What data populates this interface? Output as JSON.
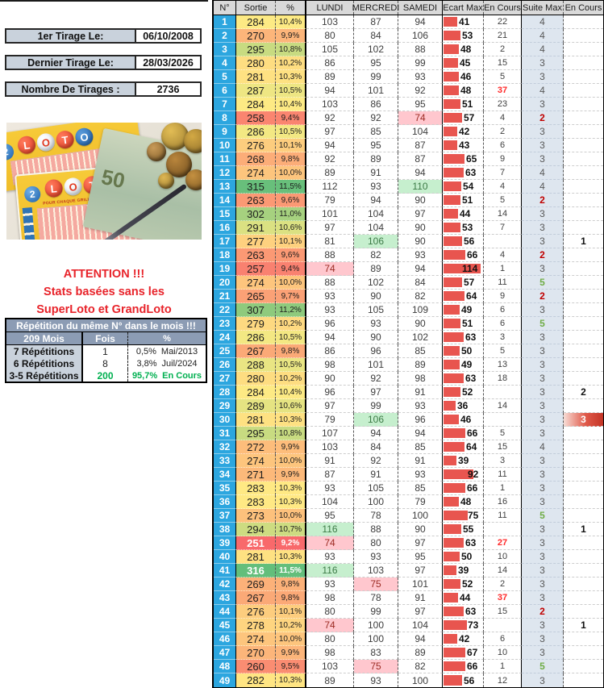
{
  "info_boxes": [
    {
      "label": "1er Tirage Le:",
      "value": "06/10/2008"
    },
    {
      "label": "Dernier Tirage Le:",
      "value": "28/03/2026"
    },
    {
      "label": "Nombre De Tirages :",
      "value": "2736"
    }
  ],
  "attention": {
    "lines": [
      "ATTENTION !!!",
      "Stats basées sans les",
      "SuperLoto et GrandLoto"
    ]
  },
  "photo": {
    "loto_letters": [
      "L",
      "O",
      "T",
      "O"
    ],
    "ticket_badge": "2",
    "ticket_subtitle": "POUR CHAQUE GRILLE COCHEZ 5 NUMÉROS",
    "bill_value": "50"
  },
  "repetition": {
    "title": "Répétition du même N° dans le mois !!!",
    "columns": [
      "209 Mois",
      "Fois",
      "%"
    ],
    "rows": [
      {
        "label": "7 Répétitions",
        "fois": "1",
        "pct": "0,5%",
        "note": "Mai/2013",
        "highlight": false
      },
      {
        "label": "6 Répétitions",
        "fois": "8",
        "pct": "3,8%",
        "note": "Juil/2024",
        "highlight": false
      },
      {
        "label": "3-5 Répétitions",
        "fois": "200",
        "pct": "95,7%",
        "note": "En Cours",
        "highlight": true
      }
    ]
  },
  "table": {
    "headers": [
      "N°",
      "Sortie",
      "%",
      "LUNDI",
      "MERCREDI",
      "SAMEDI",
      "Ecart Max",
      "En Cours",
      "Suite Max",
      "En Cours"
    ],
    "rows": [
      {
        "n": 1,
        "sortie": 284,
        "pct": "10,4%",
        "lundi": 103,
        "mercredi": 87,
        "samedi": 94,
        "ecart": 41,
        "encours": "22",
        "encours_red": false,
        "suite": 4,
        "encours2": "",
        "encours2_hot": false
      },
      {
        "n": 2,
        "sortie": 270,
        "pct": "9,9%",
        "lundi": 80,
        "mercredi": 84,
        "samedi": 106,
        "ecart": 53,
        "encours": "21",
        "encours_red": false,
        "suite": 4,
        "encours2": "",
        "encours2_hot": false
      },
      {
        "n": 3,
        "sortie": 295,
        "pct": "10,8%",
        "lundi": 105,
        "mercredi": 102,
        "samedi": 88,
        "ecart": 48,
        "encours": "2",
        "encours_red": false,
        "suite": 4,
        "encours2": "",
        "encours2_hot": false
      },
      {
        "n": 4,
        "sortie": 280,
        "pct": "10,2%",
        "lundi": 86,
        "mercredi": 95,
        "samedi": 99,
        "ecart": 45,
        "encours": "15",
        "encours_red": false,
        "suite": 3,
        "encours2": "",
        "encours2_hot": false
      },
      {
        "n": 5,
        "sortie": 281,
        "pct": "10,3%",
        "lundi": 89,
        "mercredi": 99,
        "samedi": 93,
        "ecart": 46,
        "encours": "5",
        "encours_red": false,
        "suite": 3,
        "encours2": "",
        "encours2_hot": false
      },
      {
        "n": 6,
        "sortie": 287,
        "pct": "10,5%",
        "lundi": 94,
        "mercredi": 101,
        "samedi": 92,
        "ecart": 48,
        "encours": "37",
        "encours_red": true,
        "suite": 4,
        "encours2": "",
        "encours2_hot": false
      },
      {
        "n": 7,
        "sortie": 284,
        "pct": "10,4%",
        "lundi": 103,
        "mercredi": 86,
        "samedi": 95,
        "ecart": 51,
        "encours": "23",
        "encours_red": false,
        "suite": 3,
        "encours2": "",
        "encours2_hot": false
      },
      {
        "n": 8,
        "sortie": 258,
        "pct": "9,4%",
        "lundi": 92,
        "mercredi": 92,
        "samedi": 74,
        "ecart": 57,
        "encours": "4",
        "encours_red": false,
        "suite": 2,
        "encours2": "",
        "encours2_hot": false
      },
      {
        "n": 9,
        "sortie": 286,
        "pct": "10,5%",
        "lundi": 97,
        "mercredi": 85,
        "samedi": 104,
        "ecart": 42,
        "encours": "2",
        "encours_red": false,
        "suite": 3,
        "encours2": "",
        "encours2_hot": false
      },
      {
        "n": 10,
        "sortie": 276,
        "pct": "10,1%",
        "lundi": 94,
        "mercredi": 95,
        "samedi": 87,
        "ecart": 43,
        "encours": "6",
        "encours_red": false,
        "suite": 3,
        "encours2": "",
        "encours2_hot": false
      },
      {
        "n": 11,
        "sortie": 268,
        "pct": "9,8%",
        "lundi": 92,
        "mercredi": 89,
        "samedi": 87,
        "ecart": 65,
        "encours": "9",
        "encours_red": false,
        "suite": 3,
        "encours2": "",
        "encours2_hot": false
      },
      {
        "n": 12,
        "sortie": 274,
        "pct": "10,0%",
        "lundi": 89,
        "mercredi": 91,
        "samedi": 94,
        "ecart": 63,
        "encours": "7",
        "encours_red": false,
        "suite": 4,
        "encours2": "",
        "encours2_hot": false
      },
      {
        "n": 13,
        "sortie": 315,
        "pct": "11,5%",
        "lundi": 112,
        "mercredi": 93,
        "samedi": 110,
        "ecart": 54,
        "encours": "4",
        "encours_red": false,
        "suite": 4,
        "encours2": "",
        "encours2_hot": false
      },
      {
        "n": 14,
        "sortie": 263,
        "pct": "9,6%",
        "lundi": 79,
        "mercredi": 94,
        "samedi": 90,
        "ecart": 51,
        "encours": "5",
        "encours_red": false,
        "suite": 2,
        "encours2": "",
        "encours2_hot": false
      },
      {
        "n": 15,
        "sortie": 302,
        "pct": "11,0%",
        "lundi": 101,
        "mercredi": 104,
        "samedi": 97,
        "ecart": 44,
        "encours": "14",
        "encours_red": false,
        "suite": 3,
        "encours2": "",
        "encours2_hot": false
      },
      {
        "n": 16,
        "sortie": 291,
        "pct": "10,6%",
        "lundi": 97,
        "mercredi": 104,
        "samedi": 90,
        "ecart": 53,
        "encours": "7",
        "encours_red": false,
        "suite": 3,
        "encours2": "",
        "encours2_hot": false
      },
      {
        "n": 17,
        "sortie": 277,
        "pct": "10,1%",
        "lundi": 81,
        "mercredi": 106,
        "samedi": 90,
        "ecart": 56,
        "encours": "",
        "encours_red": false,
        "suite": 3,
        "encours2": "1",
        "encours2_hot": false
      },
      {
        "n": 18,
        "sortie": 263,
        "pct": "9,6%",
        "lundi": 88,
        "mercredi": 82,
        "samedi": 93,
        "ecart": 66,
        "encours": "4",
        "encours_red": false,
        "suite": 2,
        "encours2": "",
        "encours2_hot": false
      },
      {
        "n": 19,
        "sortie": 257,
        "pct": "9,4%",
        "lundi": 74,
        "mercredi": 89,
        "samedi": 94,
        "ecart": 114,
        "encours": "1",
        "encours_red": false,
        "suite": 3,
        "encours2": "",
        "encours2_hot": false
      },
      {
        "n": 20,
        "sortie": 274,
        "pct": "10,0%",
        "lundi": 88,
        "mercredi": 102,
        "samedi": 84,
        "ecart": 57,
        "encours": "11",
        "encours_red": false,
        "suite": 5,
        "encours2": "",
        "encours2_hot": false
      },
      {
        "n": 21,
        "sortie": 265,
        "pct": "9,7%",
        "lundi": 93,
        "mercredi": 90,
        "samedi": 82,
        "ecart": 64,
        "encours": "9",
        "encours_red": false,
        "suite": 2,
        "encours2": "",
        "encours2_hot": false
      },
      {
        "n": 22,
        "sortie": 307,
        "pct": "11,2%",
        "lundi": 93,
        "mercredi": 105,
        "samedi": 109,
        "ecart": 49,
        "encours": "6",
        "encours_red": false,
        "suite": 3,
        "encours2": "",
        "encours2_hot": false
      },
      {
        "n": 23,
        "sortie": 279,
        "pct": "10,2%",
        "lundi": 96,
        "mercredi": 93,
        "samedi": 90,
        "ecart": 51,
        "encours": "6",
        "encours_red": false,
        "suite": 5,
        "encours2": "",
        "encours2_hot": false
      },
      {
        "n": 24,
        "sortie": 286,
        "pct": "10,5%",
        "lundi": 94,
        "mercredi": 90,
        "samedi": 102,
        "ecart": 63,
        "encours": "3",
        "encours_red": false,
        "suite": 3,
        "encours2": "",
        "encours2_hot": false
      },
      {
        "n": 25,
        "sortie": 267,
        "pct": "9,8%",
        "lundi": 86,
        "mercredi": 96,
        "samedi": 85,
        "ecart": 50,
        "encours": "5",
        "encours_red": false,
        "suite": 3,
        "encours2": "",
        "encours2_hot": false
      },
      {
        "n": 26,
        "sortie": 288,
        "pct": "10,5%",
        "lundi": 98,
        "mercredi": 101,
        "samedi": 89,
        "ecart": 49,
        "encours": "13",
        "encours_red": false,
        "suite": 3,
        "encours2": "",
        "encours2_hot": false
      },
      {
        "n": 27,
        "sortie": 280,
        "pct": "10,2%",
        "lundi": 90,
        "mercredi": 92,
        "samedi": 98,
        "ecart": 63,
        "encours": "18",
        "encours_red": false,
        "suite": 3,
        "encours2": "",
        "encours2_hot": false
      },
      {
        "n": 28,
        "sortie": 284,
        "pct": "10,4%",
        "lundi": 96,
        "mercredi": 97,
        "samedi": 91,
        "ecart": 52,
        "encours": "",
        "encours_red": false,
        "suite": 3,
        "encours2": "2",
        "encours2_hot": false
      },
      {
        "n": 29,
        "sortie": 289,
        "pct": "10,6%",
        "lundi": 97,
        "mercredi": 99,
        "samedi": 93,
        "ecart": 36,
        "encours": "14",
        "encours_red": false,
        "suite": 3,
        "encours2": "",
        "encours2_hot": false
      },
      {
        "n": 30,
        "sortie": 281,
        "pct": "10,3%",
        "lundi": 79,
        "mercredi": 106,
        "samedi": 96,
        "ecart": 46,
        "encours": "",
        "encours_red": false,
        "suite": 3,
        "encours2": "3",
        "encours2_hot": true
      },
      {
        "n": 31,
        "sortie": 295,
        "pct": "10,8%",
        "lundi": 107,
        "mercredi": 94,
        "samedi": 94,
        "ecart": 66,
        "encours": "5",
        "encours_red": false,
        "suite": 3,
        "encours2": "",
        "encours2_hot": false
      },
      {
        "n": 32,
        "sortie": 272,
        "pct": "9,9%",
        "lundi": 103,
        "mercredi": 84,
        "samedi": 85,
        "ecart": 64,
        "encours": "15",
        "encours_red": false,
        "suite": 4,
        "encours2": "",
        "encours2_hot": false
      },
      {
        "n": 33,
        "sortie": 274,
        "pct": "10,0%",
        "lundi": 91,
        "mercredi": 92,
        "samedi": 91,
        "ecart": 39,
        "encours": "3",
        "encours_red": false,
        "suite": 3,
        "encours2": "",
        "encours2_hot": false
      },
      {
        "n": 34,
        "sortie": 271,
        "pct": "9,9%",
        "lundi": 87,
        "mercredi": 91,
        "samedi": 93,
        "ecart": 92,
        "encours": "11",
        "encours_red": false,
        "suite": 3,
        "encours2": "",
        "encours2_hot": false
      },
      {
        "n": 35,
        "sortie": 283,
        "pct": "10,3%",
        "lundi": 93,
        "mercredi": 105,
        "samedi": 85,
        "ecart": 66,
        "encours": "1",
        "encours_red": false,
        "suite": 3,
        "encours2": "",
        "encours2_hot": false
      },
      {
        "n": 36,
        "sortie": 283,
        "pct": "10,3%",
        "lundi": 104,
        "mercredi": 100,
        "samedi": 79,
        "ecart": 48,
        "encours": "16",
        "encours_red": false,
        "suite": 3,
        "encours2": "",
        "encours2_hot": false
      },
      {
        "n": 37,
        "sortie": 273,
        "pct": "10,0%",
        "lundi": 95,
        "mercredi": 78,
        "samedi": 100,
        "ecart": 75,
        "encours": "11",
        "encours_red": false,
        "suite": 5,
        "encours2": "",
        "encours2_hot": false
      },
      {
        "n": 38,
        "sortie": 294,
        "pct": "10,7%",
        "lundi": 116,
        "mercredi": 88,
        "samedi": 90,
        "ecart": 55,
        "encours": "",
        "encours_red": false,
        "suite": 3,
        "encours2": "1",
        "encours2_hot": false
      },
      {
        "n": 39,
        "sortie": 251,
        "pct": "9,2%",
        "lundi": 74,
        "mercredi": 80,
        "samedi": 97,
        "ecart": 63,
        "encours": "27",
        "encours_red": true,
        "suite": 3,
        "encours2": "",
        "encours2_hot": false
      },
      {
        "n": 40,
        "sortie": 281,
        "pct": "10,3%",
        "lundi": 93,
        "mercredi": 93,
        "samedi": 95,
        "ecart": 50,
        "encours": "10",
        "encours_red": false,
        "suite": 3,
        "encours2": "",
        "encours2_hot": false
      },
      {
        "n": 41,
        "sortie": 316,
        "pct": "11,5%",
        "lundi": 116,
        "mercredi": 103,
        "samedi": 97,
        "ecart": 39,
        "encours": "14",
        "encours_red": false,
        "suite": 3,
        "encours2": "",
        "encours2_hot": false
      },
      {
        "n": 42,
        "sortie": 269,
        "pct": "9,8%",
        "lundi": 93,
        "mercredi": 75,
        "samedi": 101,
        "ecart": 52,
        "encours": "2",
        "encours_red": false,
        "suite": 3,
        "encours2": "",
        "encours2_hot": false
      },
      {
        "n": 43,
        "sortie": 267,
        "pct": "9,8%",
        "lundi": 98,
        "mercredi": 78,
        "samedi": 91,
        "ecart": 44,
        "encours": "37",
        "encours_red": true,
        "suite": 3,
        "encours2": "",
        "encours2_hot": false
      },
      {
        "n": 44,
        "sortie": 276,
        "pct": "10,1%",
        "lundi": 80,
        "mercredi": 99,
        "samedi": 97,
        "ecart": 63,
        "encours": "15",
        "encours_red": false,
        "suite": 2,
        "encours2": "",
        "encours2_hot": false
      },
      {
        "n": 45,
        "sortie": 278,
        "pct": "10,2%",
        "lundi": 74,
        "mercredi": 100,
        "samedi": 104,
        "ecart": 73,
        "encours": "",
        "encours_red": false,
        "suite": 3,
        "encours2": "1",
        "encours2_hot": false
      },
      {
        "n": 46,
        "sortie": 274,
        "pct": "10,0%",
        "lundi": 80,
        "mercredi": 100,
        "samedi": 94,
        "ecart": 42,
        "encours": "6",
        "encours_red": false,
        "suite": 3,
        "encours2": "",
        "encours2_hot": false
      },
      {
        "n": 47,
        "sortie": 270,
        "pct": "9,9%",
        "lundi": 98,
        "mercredi": 83,
        "samedi": 89,
        "ecart": 67,
        "encours": "10",
        "encours_red": false,
        "suite": 3,
        "encours2": "",
        "encours2_hot": false
      },
      {
        "n": 48,
        "sortie": 260,
        "pct": "9,5%",
        "lundi": 103,
        "mercredi": 75,
        "samedi": 82,
        "ecart": 66,
        "encours": "1",
        "encours_red": false,
        "suite": 5,
        "encours2": "",
        "encours2_hot": false
      },
      {
        "n": 49,
        "sortie": 282,
        "pct": "10,3%",
        "lundi": 89,
        "mercredi": 93,
        "samedi": 100,
        "ecart": 56,
        "encours": "12",
        "encours_red": false,
        "suite": 3,
        "encours2": "",
        "encours2_hot": false
      }
    ]
  },
  "colors": {
    "scale_min": "#F8696B",
    "scale_mid": "#FFEB84",
    "scale_max": "#63BE7B",
    "bar_red": "#E8554F",
    "day_max_bg": "#C6EFCE",
    "day_max_text": "#3C7A46",
    "day_min_bg": "#FFC7CE",
    "day_min_text": "#9C2B23",
    "number_col_blue": "#2CA6DF",
    "suite_green": "#70AD47",
    "suite_red": "#C00000",
    "alert_red": "#FF2A2A",
    "stat_green": "#00B050"
  }
}
